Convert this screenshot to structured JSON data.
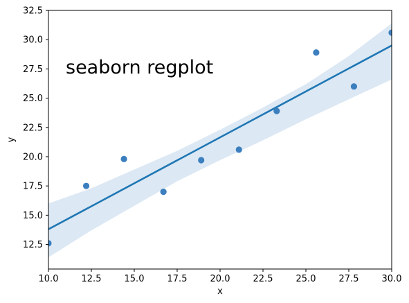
{
  "chart_data": {
    "type": "scatter",
    "title": "",
    "xlabel": "x",
    "ylabel": "y",
    "annotation": "seaborn regplot",
    "xlim": [
      10.0,
      30.0
    ],
    "ylim": [
      10.4,
      32.5
    ],
    "x_ticks": [
      "10.0",
      "12.5",
      "15.0",
      "17.5",
      "20.0",
      "22.5",
      "25.0",
      "27.5",
      "30.0"
    ],
    "y_ticks": [
      "12.5",
      "15.0",
      "17.5",
      "20.0",
      "22.5",
      "25.0",
      "27.5",
      "30.0",
      "32.5"
    ],
    "points": [
      {
        "x": 10.0,
        "y": 12.6
      },
      {
        "x": 12.2,
        "y": 17.5
      },
      {
        "x": 14.4,
        "y": 19.8
      },
      {
        "x": 16.7,
        "y": 17.0
      },
      {
        "x": 18.9,
        "y": 19.7
      },
      {
        "x": 21.1,
        "y": 20.6
      },
      {
        "x": 23.3,
        "y": 23.9
      },
      {
        "x": 25.6,
        "y": 28.9
      },
      {
        "x": 27.8,
        "y": 26.0
      },
      {
        "x": 30.0,
        "y": 30.6
      }
    ],
    "regression_line": {
      "x": [
        10.0,
        30.0
      ],
      "y": [
        13.8,
        29.5
      ]
    },
    "confidence_band": {
      "x": [
        10.0,
        12.5,
        15.0,
        17.5,
        20.0,
        22.5,
        25.0,
        27.5,
        30.0
      ],
      "upper": [
        16.0,
        17.3,
        18.9,
        20.5,
        22.3,
        24.2,
        26.2,
        28.6,
        31.4
      ],
      "lower": [
        11.4,
        13.7,
        15.8,
        17.9,
        19.7,
        21.4,
        23.2,
        24.9,
        26.6
      ]
    },
    "grid": false,
    "colors": {
      "points": "#3b7fbf",
      "line": "#1f77b4",
      "band": "#dce8f4"
    }
  }
}
